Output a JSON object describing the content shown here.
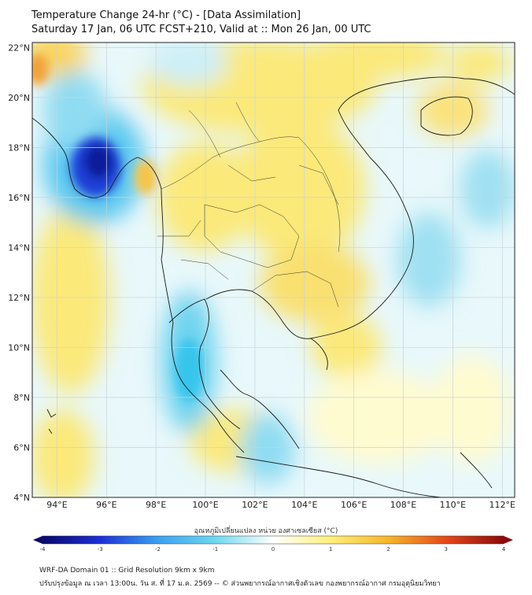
{
  "title": {
    "line1": "Temperature Change 24-hr (°C) - [Data Assimilation]",
    "line2": "Saturday 17 Jan, 06 UTC FCST+210, Valid at :: Mon 26 Jan, 00 UTC"
  },
  "map": {
    "lon_range": [
      93,
      112.5
    ],
    "lat_range": [
      4,
      22.2
    ],
    "lon_ticks": [
      "94°E",
      "96°E",
      "98°E",
      "100°E",
      "102°E",
      "104°E",
      "106°E",
      "108°E",
      "110°E",
      "112°E"
    ],
    "lat_ticks": [
      "22°N",
      "20°N",
      "18°N",
      "16°N",
      "14°N",
      "12°N",
      "10°N",
      "8°N",
      "6°N",
      "4°N"
    ],
    "grid": true
  },
  "colorbar": {
    "label": "อุณหภูมิเปลี่ยนแปลง หน่วย องศาเซลเซียส (°C)",
    "ticks": [
      "-4",
      "-3",
      "-2",
      "-1",
      "0",
      "1",
      "2",
      "3",
      "4"
    ],
    "range": [
      -4,
      4
    ],
    "colors": [
      "#08086b",
      "#1d2fd6",
      "#3aa0f0",
      "#6fd8f0",
      "#ffffff",
      "#fff07a",
      "#f6b52a",
      "#e5481a",
      "#8b0a0a"
    ]
  },
  "footer": {
    "line1": "WRF-DA Domain 01 :: Grid Resolution 9km x 9km",
    "line2": "ปรับปรุงข้อมูล ณ เวลา 13:00น. วัน ส. ที่ 17 ม.ค. 2569 -- © ส่วนพยากรณ์อากาศเชิงตัวเลข กองพยากรณ์อากาศ กรมอุตุนิยมวิทยา"
  }
}
